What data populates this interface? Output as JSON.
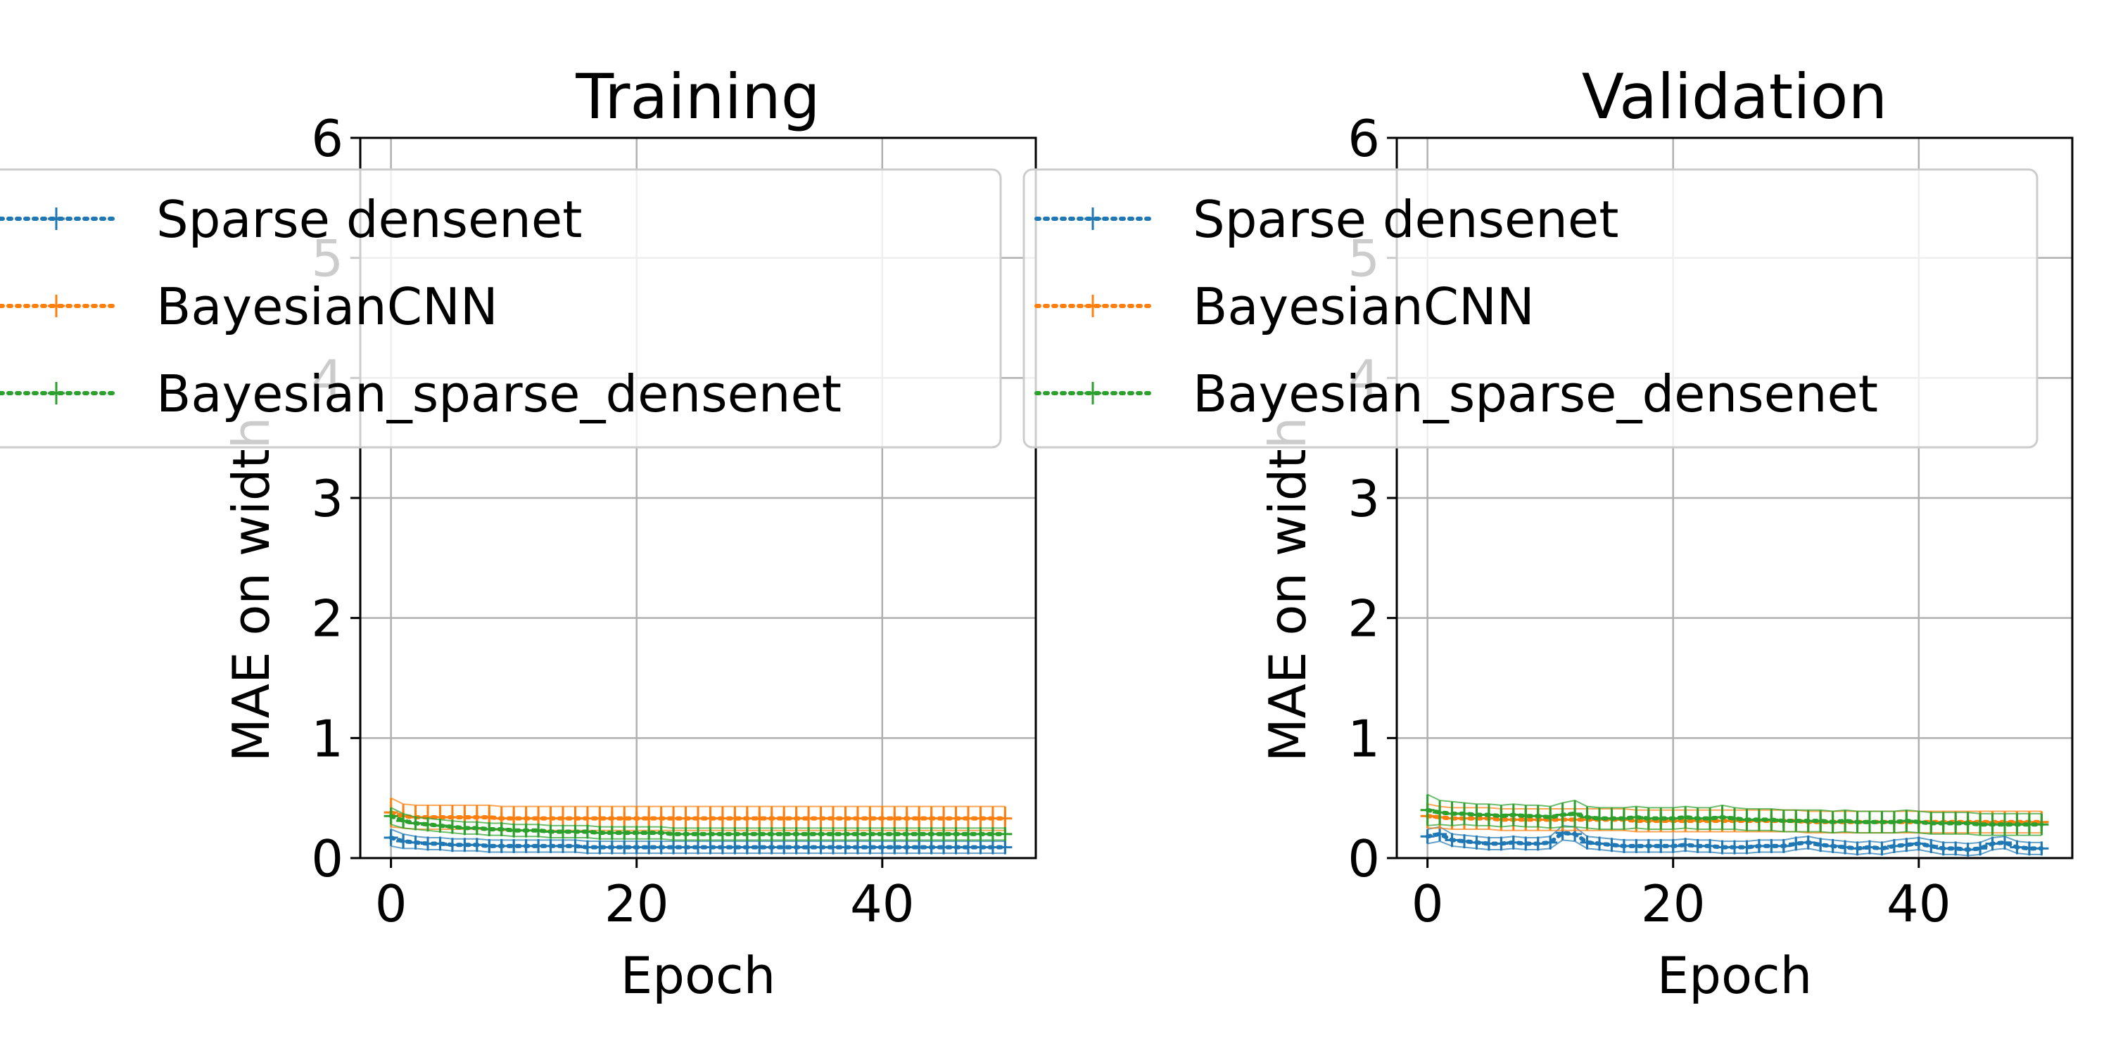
{
  "chart_data": [
    {
      "type": "line",
      "title": "Training",
      "xlabel": "Epoch",
      "ylabel": "MAE on width",
      "xlim": [
        -2.5,
        52.5
      ],
      "ylim": [
        0,
        6
      ],
      "xticks": [
        0,
        20,
        40
      ],
      "yticks": [
        0,
        1,
        2,
        3,
        4,
        5,
        6
      ],
      "grid": true,
      "legend": "upper-left",
      "series": [
        {
          "name": "Sparse densenet",
          "color": "#1f77b4",
          "values": [
            0.17,
            0.14,
            0.13,
            0.12,
            0.12,
            0.11,
            0.11,
            0.11,
            0.1,
            0.1,
            0.1,
            0.1,
            0.1,
            0.1,
            0.1,
            0.1,
            0.09,
            0.09,
            0.09,
            0.09,
            0.09,
            0.09,
            0.09,
            0.09,
            0.09,
            0.09,
            0.09,
            0.09,
            0.09,
            0.09,
            0.09,
            0.09,
            0.09,
            0.09,
            0.09,
            0.09,
            0.09,
            0.09,
            0.09,
            0.09,
            0.09,
            0.09,
            0.09,
            0.09,
            0.09,
            0.09,
            0.09,
            0.09,
            0.09,
            0.09,
            0.09
          ],
          "error": [
            0.07,
            0.06,
            0.05,
            0.05,
            0.05,
            0.05,
            0.05,
            0.05,
            0.05,
            0.05,
            0.05,
            0.05,
            0.05,
            0.05,
            0.05,
            0.05,
            0.05,
            0.05,
            0.05,
            0.05,
            0.05,
            0.05,
            0.05,
            0.05,
            0.05,
            0.05,
            0.05,
            0.05,
            0.05,
            0.05,
            0.05,
            0.05,
            0.05,
            0.05,
            0.05,
            0.05,
            0.05,
            0.05,
            0.05,
            0.05,
            0.05,
            0.05,
            0.05,
            0.05,
            0.05,
            0.05,
            0.05,
            0.05,
            0.05,
            0.05,
            0.05
          ]
        },
        {
          "name": "BayesianCNN",
          "color": "#ff7f0e",
          "values": [
            0.38,
            0.35,
            0.34,
            0.34,
            0.34,
            0.34,
            0.34,
            0.34,
            0.34,
            0.33,
            0.33,
            0.33,
            0.33,
            0.33,
            0.33,
            0.33,
            0.33,
            0.33,
            0.33,
            0.33,
            0.33,
            0.33,
            0.33,
            0.33,
            0.33,
            0.33,
            0.33,
            0.33,
            0.33,
            0.33,
            0.33,
            0.33,
            0.33,
            0.33,
            0.33,
            0.33,
            0.33,
            0.33,
            0.33,
            0.33,
            0.33,
            0.33,
            0.33,
            0.33,
            0.33,
            0.33,
            0.33,
            0.33,
            0.33,
            0.33,
            0.33
          ],
          "error": [
            0.12,
            0.1,
            0.1,
            0.1,
            0.1,
            0.1,
            0.1,
            0.1,
            0.1,
            0.1,
            0.1,
            0.1,
            0.1,
            0.1,
            0.1,
            0.1,
            0.1,
            0.1,
            0.1,
            0.1,
            0.1,
            0.1,
            0.1,
            0.1,
            0.1,
            0.1,
            0.1,
            0.1,
            0.1,
            0.1,
            0.1,
            0.1,
            0.1,
            0.1,
            0.1,
            0.1,
            0.1,
            0.1,
            0.1,
            0.1,
            0.1,
            0.1,
            0.1,
            0.1,
            0.1,
            0.1,
            0.1,
            0.1,
            0.1,
            0.1,
            0.1
          ]
        },
        {
          "name": "Bayesian_sparse_densenet",
          "color": "#2ca02c",
          "values": [
            0.35,
            0.31,
            0.29,
            0.28,
            0.27,
            0.26,
            0.25,
            0.25,
            0.24,
            0.24,
            0.23,
            0.23,
            0.23,
            0.22,
            0.22,
            0.22,
            0.22,
            0.21,
            0.21,
            0.21,
            0.21,
            0.21,
            0.21,
            0.2,
            0.2,
            0.2,
            0.2,
            0.2,
            0.2,
            0.2,
            0.2,
            0.2,
            0.2,
            0.2,
            0.2,
            0.2,
            0.2,
            0.2,
            0.2,
            0.2,
            0.2,
            0.2,
            0.2,
            0.2,
            0.2,
            0.2,
            0.2,
            0.2,
            0.2,
            0.2,
            0.2
          ],
          "error": [
            0.07,
            0.06,
            0.05,
            0.05,
            0.05,
            0.05,
            0.05,
            0.05,
            0.05,
            0.05,
            0.05,
            0.05,
            0.05,
            0.05,
            0.05,
            0.05,
            0.05,
            0.05,
            0.05,
            0.05,
            0.05,
            0.05,
            0.05,
            0.05,
            0.05,
            0.05,
            0.05,
            0.05,
            0.05,
            0.05,
            0.05,
            0.05,
            0.05,
            0.05,
            0.05,
            0.05,
            0.05,
            0.05,
            0.05,
            0.05,
            0.05,
            0.05,
            0.05,
            0.05,
            0.05,
            0.05,
            0.05,
            0.05,
            0.05,
            0.05,
            0.05
          ]
        }
      ]
    },
    {
      "type": "line",
      "title": "Validation",
      "xlabel": "Epoch",
      "ylabel": "MAE on width",
      "xlim": [
        -2.5,
        52.5
      ],
      "ylim": [
        0,
        6
      ],
      "xticks": [
        0,
        20,
        40
      ],
      "yticks": [
        0,
        1,
        2,
        3,
        4,
        5,
        6
      ],
      "grid": true,
      "legend": "upper-left",
      "series": [
        {
          "name": "Sparse densenet",
          "color": "#1f77b4",
          "values": [
            0.18,
            0.2,
            0.15,
            0.14,
            0.13,
            0.12,
            0.12,
            0.13,
            0.12,
            0.12,
            0.13,
            0.21,
            0.2,
            0.13,
            0.12,
            0.11,
            0.1,
            0.1,
            0.1,
            0.1,
            0.1,
            0.11,
            0.1,
            0.1,
            0.09,
            0.09,
            0.09,
            0.1,
            0.1,
            0.1,
            0.12,
            0.13,
            0.11,
            0.1,
            0.09,
            0.08,
            0.09,
            0.08,
            0.1,
            0.11,
            0.12,
            0.1,
            0.08,
            0.08,
            0.07,
            0.08,
            0.12,
            0.13,
            0.09,
            0.08,
            0.08
          ],
          "error": [
            0.06,
            0.06,
            0.05,
            0.05,
            0.05,
            0.05,
            0.05,
            0.05,
            0.05,
            0.05,
            0.05,
            0.06,
            0.06,
            0.05,
            0.05,
            0.05,
            0.05,
            0.05,
            0.05,
            0.05,
            0.05,
            0.05,
            0.05,
            0.05,
            0.05,
            0.05,
            0.05,
            0.05,
            0.05,
            0.05,
            0.05,
            0.05,
            0.05,
            0.05,
            0.05,
            0.05,
            0.05,
            0.05,
            0.05,
            0.05,
            0.05,
            0.05,
            0.05,
            0.05,
            0.05,
            0.05,
            0.05,
            0.05,
            0.05,
            0.05,
            0.05
          ]
        },
        {
          "name": "BayesianCNN",
          "color": "#ff7f0e",
          "values": [
            0.35,
            0.34,
            0.33,
            0.33,
            0.33,
            0.33,
            0.32,
            0.32,
            0.32,
            0.32,
            0.32,
            0.32,
            0.32,
            0.32,
            0.32,
            0.32,
            0.32,
            0.31,
            0.31,
            0.31,
            0.31,
            0.31,
            0.31,
            0.31,
            0.31,
            0.31,
            0.31,
            0.31,
            0.31,
            0.31,
            0.31,
            0.3,
            0.3,
            0.3,
            0.3,
            0.3,
            0.3,
            0.3,
            0.3,
            0.3,
            0.3,
            0.3,
            0.3,
            0.3,
            0.3,
            0.3,
            0.3,
            0.3,
            0.3,
            0.3,
            0.3
          ],
          "error": [
            0.1,
            0.09,
            0.09,
            0.09,
            0.09,
            0.09,
            0.09,
            0.09,
            0.09,
            0.09,
            0.09,
            0.09,
            0.09,
            0.09,
            0.09,
            0.09,
            0.09,
            0.09,
            0.09,
            0.09,
            0.09,
            0.09,
            0.09,
            0.09,
            0.09,
            0.09,
            0.09,
            0.09,
            0.09,
            0.09,
            0.09,
            0.09,
            0.09,
            0.09,
            0.09,
            0.09,
            0.09,
            0.09,
            0.09,
            0.09,
            0.09,
            0.09,
            0.09,
            0.09,
            0.09,
            0.09,
            0.09,
            0.09,
            0.09,
            0.09,
            0.09
          ]
        },
        {
          "name": "Bayesian_sparse_densenet",
          "color": "#2ca02c",
          "values": [
            0.4,
            0.38,
            0.37,
            0.37,
            0.36,
            0.36,
            0.35,
            0.36,
            0.35,
            0.35,
            0.34,
            0.36,
            0.37,
            0.34,
            0.33,
            0.33,
            0.33,
            0.34,
            0.33,
            0.33,
            0.33,
            0.34,
            0.33,
            0.33,
            0.34,
            0.33,
            0.32,
            0.32,
            0.32,
            0.31,
            0.31,
            0.31,
            0.31,
            0.3,
            0.31,
            0.3,
            0.3,
            0.3,
            0.3,
            0.31,
            0.3,
            0.29,
            0.29,
            0.29,
            0.29,
            0.28,
            0.28,
            0.28,
            0.28,
            0.28,
            0.28
          ],
          "error": [
            0.13,
            0.1,
            0.1,
            0.09,
            0.09,
            0.09,
            0.09,
            0.09,
            0.09,
            0.09,
            0.09,
            0.1,
            0.11,
            0.09,
            0.09,
            0.09,
            0.09,
            0.09,
            0.09,
            0.09,
            0.09,
            0.09,
            0.09,
            0.09,
            0.1,
            0.09,
            0.09,
            0.09,
            0.09,
            0.09,
            0.09,
            0.09,
            0.09,
            0.09,
            0.09,
            0.09,
            0.09,
            0.09,
            0.09,
            0.09,
            0.09,
            0.09,
            0.09,
            0.09,
            0.09,
            0.09,
            0.09,
            0.09,
            0.09,
            0.09,
            0.09
          ]
        }
      ]
    }
  ]
}
